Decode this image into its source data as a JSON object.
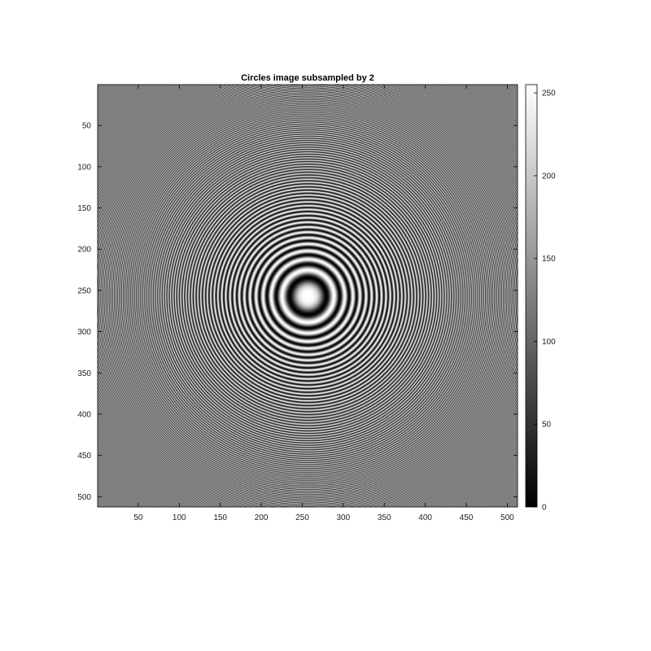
{
  "chart_data": {
    "type": "heatmap",
    "title": "Circles image subsampled by 2",
    "xlabel": "",
    "ylabel": "",
    "image_size": [
      512,
      512
    ],
    "xlim": [
      0.5,
      512.5
    ],
    "ylim": [
      0.5,
      512.5
    ],
    "y_axis_reversed": true,
    "x_ticks": [
      50,
      100,
      150,
      200,
      250,
      300,
      350,
      400,
      450,
      500
    ],
    "y_ticks": [
      50,
      100,
      150,
      200,
      250,
      300,
      350,
      400,
      450,
      500
    ],
    "colormap": "gray",
    "color_range": [
      0,
      255
    ],
    "colorbar_ticks": [
      0,
      50,
      100,
      150,
      200,
      250
    ],
    "pattern": {
      "kind": "concentric-circles",
      "center": [
        257,
        257
      ],
      "formula": "128 + 127*cos(r^2 / 160)",
      "subsample": 2
    },
    "grid": false,
    "colorbar": true
  }
}
